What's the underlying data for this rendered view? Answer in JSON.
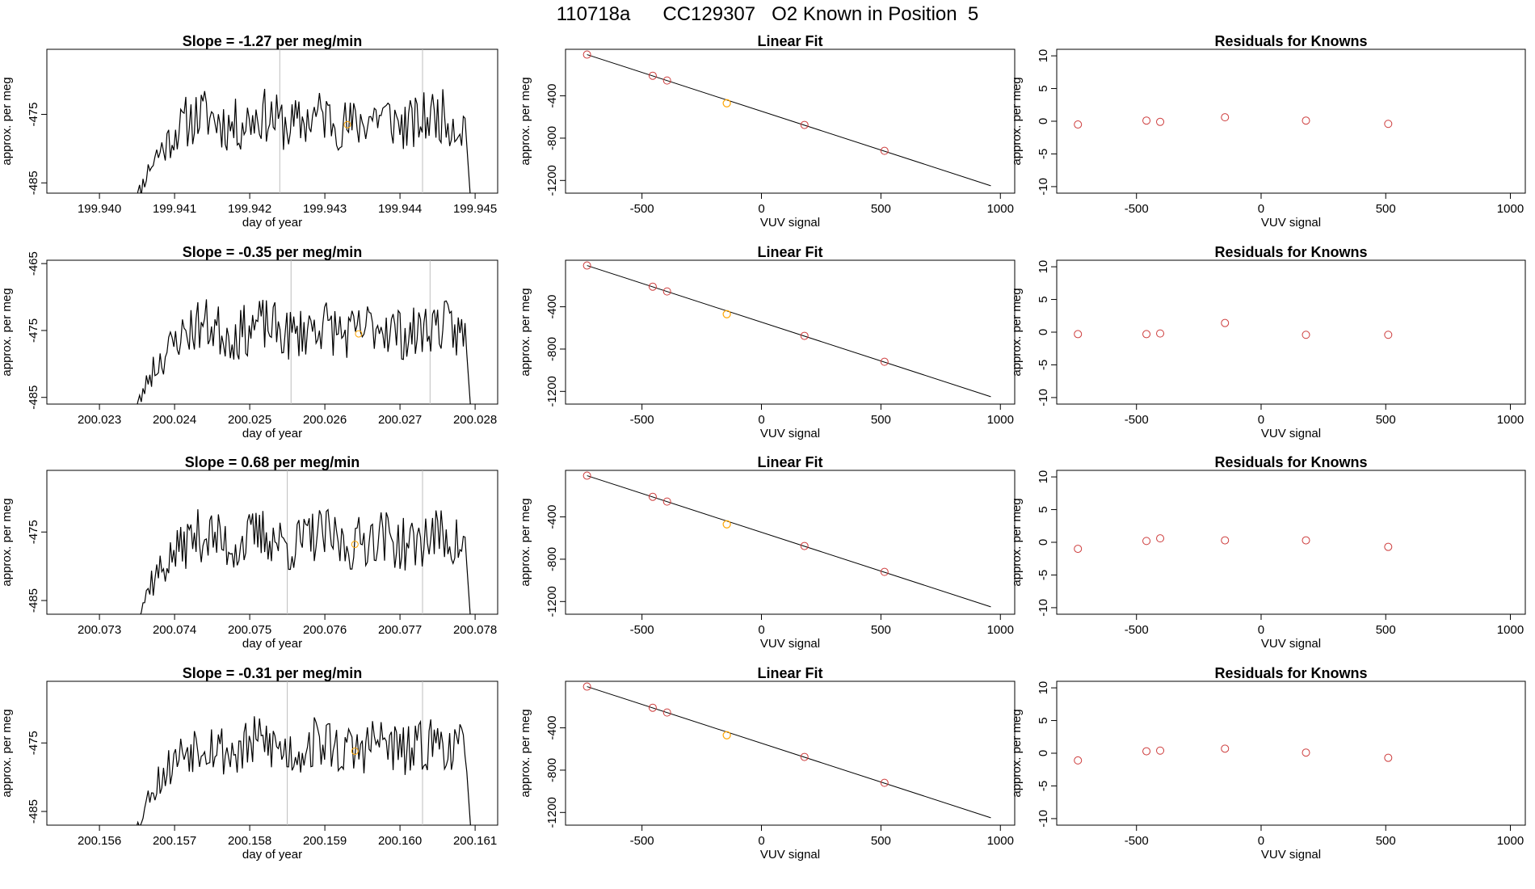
{
  "figure": {
    "title": "110718a      CC129307   O2 Known in Position  5"
  },
  "colors": {
    "trace": "#000000",
    "vline": "#bebebe",
    "known": "#cd3b3b",
    "unknown": "#ffa500"
  },
  "chart_data": [
    {
      "type": "line",
      "title": "Slope =  -1.27  per meg/min",
      "xlabel": "day of year",
      "ylabel": "approx. per meg",
      "xlim": [
        199.9393,
        199.9453
      ],
      "ylim": [
        -486.5,
        -465.5
      ],
      "xticks": [
        199.94,
        199.941,
        199.942,
        199.943,
        199.944,
        199.945
      ],
      "xtick_labels": [
        "199.940",
        "199.941",
        "199.942",
        "199.943",
        "199.944",
        "199.945"
      ],
      "yticks": [
        -485,
        -475
      ],
      "ytick_labels": [
        "-485",
        "-475"
      ],
      "vlines": [
        199.9424,
        199.9443
      ],
      "point": {
        "x": 199.9433,
        "y": -476.5
      },
      "noise_seed": 11
    },
    {
      "type": "scatter",
      "title": "Linear Fit",
      "xlabel": "VUV signal",
      "ylabel": "approx. per meg",
      "xlim": [
        -820,
        1060
      ],
      "ylim": [
        -1320,
        40
      ],
      "xticks": [
        -500,
        0,
        500,
        1000
      ],
      "xtick_labels": [
        "-500",
        "0",
        "500",
        "1000"
      ],
      "yticks": [
        -1200,
        -800,
        -400
      ],
      "ytick_labels": [
        "-1200",
        "-800",
        "-400"
      ],
      "line": [
        [
          -730,
          -10
        ],
        [
          960,
          -1250
        ]
      ],
      "knowns": [
        [
          -730,
          -10
        ],
        [
          -455,
          -210
        ],
        [
          -395,
          -255
        ],
        [
          180,
          -675
        ],
        [
          515,
          -920
        ]
      ],
      "unknown": [
        -145,
        -470
      ]
    },
    {
      "type": "scatter",
      "title": "Residuals for Knowns",
      "xlabel": "VUV signal",
      "ylabel": "approx. per meg",
      "xlim": [
        -820,
        1060
      ],
      "ylim": [
        -11,
        11
      ],
      "xticks": [
        -500,
        0,
        500,
        1000
      ],
      "xtick_labels": [
        "-500",
        "0",
        "500",
        "1000"
      ],
      "yticks": [
        -10,
        -5,
        0,
        5,
        10
      ],
      "ytick_labels": [
        "-10",
        "-5",
        "0",
        "5",
        "10"
      ],
      "knowns": [
        [
          -735,
          -0.5
        ],
        [
          -460,
          0.1
        ],
        [
          -405,
          -0.1
        ],
        [
          -145,
          0.6
        ],
        [
          180,
          0.1
        ],
        [
          510,
          -0.4
        ]
      ]
    },
    {
      "type": "line",
      "title": "Slope =  -0.35  per meg/min",
      "xlabel": "day of year",
      "ylabel": "approx. per meg",
      "xlim": [
        200.0223,
        200.0283
      ],
      "ylim": [
        -486.0,
        -464.5
      ],
      "xticks": [
        200.023,
        200.024,
        200.025,
        200.026,
        200.027,
        200.028
      ],
      "xtick_labels": [
        "200.023",
        "200.024",
        "200.025",
        "200.026",
        "200.027",
        "200.028"
      ],
      "yticks": [
        -485,
        -475,
        -465
      ],
      "ytick_labels": [
        "-485",
        "-475",
        "-465"
      ],
      "vlines": [
        200.02555,
        200.0274
      ],
      "point": {
        "x": 200.02645,
        "y": -475.5
      },
      "noise_seed": 23
    },
    {
      "type": "scatter",
      "title": "Linear Fit",
      "xlabel": "VUV signal",
      "ylabel": "approx. per meg",
      "xlim": [
        -820,
        1060
      ],
      "ylim": [
        -1320,
        40
      ],
      "xticks": [
        -500,
        0,
        500,
        1000
      ],
      "xtick_labels": [
        "-500",
        "0",
        "500",
        "1000"
      ],
      "yticks": [
        -1200,
        -800,
        -400
      ],
      "ytick_labels": [
        "-1200",
        "-800",
        "-400"
      ],
      "line": [
        [
          -730,
          -10
        ],
        [
          960,
          -1250
        ]
      ],
      "knowns": [
        [
          -730,
          -10
        ],
        [
          -455,
          -210
        ],
        [
          -395,
          -255
        ],
        [
          180,
          -675
        ],
        [
          515,
          -920
        ]
      ],
      "unknown": [
        -145,
        -470
      ]
    },
    {
      "type": "scatter",
      "title": "Residuals for Knowns",
      "xlabel": "VUV signal",
      "ylabel": "approx. per meg",
      "xlim": [
        -820,
        1060
      ],
      "ylim": [
        -11,
        11
      ],
      "xticks": [
        -500,
        0,
        500,
        1000
      ],
      "xtick_labels": [
        "-500",
        "0",
        "500",
        "1000"
      ],
      "yticks": [
        -10,
        -5,
        0,
        5,
        10
      ],
      "ytick_labels": [
        "-10",
        "-5",
        "0",
        "5",
        "10"
      ],
      "knowns": [
        [
          -735,
          -0.3
        ],
        [
          -460,
          -0.3
        ],
        [
          -405,
          -0.2
        ],
        [
          -145,
          1.4
        ],
        [
          180,
          -0.4
        ],
        [
          510,
          -0.4
        ]
      ]
    },
    {
      "type": "line",
      "title": "Slope =  0.68  per meg/min",
      "xlabel": "day of year",
      "ylabel": "approx. per meg",
      "xlim": [
        200.0723,
        200.0783
      ],
      "ylim": [
        -487.0,
        -466.0
      ],
      "xticks": [
        200.073,
        200.074,
        200.075,
        200.076,
        200.077,
        200.078
      ],
      "xtick_labels": [
        "200.073",
        "200.074",
        "200.075",
        "200.076",
        "200.077",
        "200.078"
      ],
      "yticks": [
        -485,
        -475
      ],
      "ytick_labels": [
        "-485",
        "-475"
      ],
      "vlines": [
        200.0755,
        200.0773
      ],
      "point": {
        "x": 200.0764,
        "y": -476.8
      },
      "noise_seed": 37
    },
    {
      "type": "scatter",
      "title": "Linear Fit",
      "xlabel": "VUV signal",
      "ylabel": "approx. per meg",
      "xlim": [
        -820,
        1060
      ],
      "ylim": [
        -1320,
        40
      ],
      "xticks": [
        -500,
        0,
        500,
        1000
      ],
      "xtick_labels": [
        "-500",
        "0",
        "500",
        "1000"
      ],
      "yticks": [
        -1200,
        -800,
        -400
      ],
      "ytick_labels": [
        "-1200",
        "-800",
        "-400"
      ],
      "line": [
        [
          -730,
          -10
        ],
        [
          960,
          -1250
        ]
      ],
      "knowns": [
        [
          -730,
          -10
        ],
        [
          -455,
          -210
        ],
        [
          -395,
          -255
        ],
        [
          180,
          -675
        ],
        [
          515,
          -920
        ]
      ],
      "unknown": [
        -145,
        -470
      ]
    },
    {
      "type": "scatter",
      "title": "Residuals for Knowns",
      "xlabel": "VUV signal",
      "ylabel": "approx. per meg",
      "xlim": [
        -820,
        1060
      ],
      "ylim": [
        -11,
        11
      ],
      "xticks": [
        -500,
        0,
        500,
        1000
      ],
      "xtick_labels": [
        "-500",
        "0",
        "500",
        "1000"
      ],
      "yticks": [
        -10,
        -5,
        0,
        5,
        10
      ],
      "ytick_labels": [
        "-10",
        "-5",
        "0",
        "5",
        "10"
      ],
      "knowns": [
        [
          -735,
          -1.0
        ],
        [
          -460,
          0.2
        ],
        [
          -405,
          0.6
        ],
        [
          -145,
          0.3
        ],
        [
          180,
          0.3
        ],
        [
          510,
          -0.7
        ]
      ]
    },
    {
      "type": "line",
      "title": "Slope =  -0.31  per meg/min",
      "xlabel": "day of year",
      "ylabel": "approx. per meg",
      "xlim": [
        200.1553,
        200.1613
      ],
      "ylim": [
        -487.0,
        -466.0
      ],
      "xticks": [
        200.156,
        200.157,
        200.158,
        200.159,
        200.16,
        200.161
      ],
      "xtick_labels": [
        "200.156",
        "200.157",
        "200.158",
        "200.159",
        "200.160",
        "200.161"
      ],
      "yticks": [
        -485,
        -475
      ],
      "ytick_labels": [
        "-485",
        "-475"
      ],
      "vlines": [
        200.1585,
        200.1603
      ],
      "point": {
        "x": 200.1594,
        "y": -476.2
      },
      "noise_seed": 53
    },
    {
      "type": "scatter",
      "title": "Linear Fit",
      "xlabel": "VUV signal",
      "ylabel": "approx. per meg",
      "xlim": [
        -820,
        1060
      ],
      "ylim": [
        -1320,
        40
      ],
      "xticks": [
        -500,
        0,
        500,
        1000
      ],
      "xtick_labels": [
        "-500",
        "0",
        "500",
        "1000"
      ],
      "yticks": [
        -1200,
        -800,
        -400
      ],
      "ytick_labels": [
        "-1200",
        "-800",
        "-400"
      ],
      "line": [
        [
          -730,
          -10
        ],
        [
          960,
          -1250
        ]
      ],
      "knowns": [
        [
          -730,
          -10
        ],
        [
          -455,
          -210
        ],
        [
          -395,
          -255
        ],
        [
          180,
          -675
        ],
        [
          515,
          -920
        ]
      ],
      "unknown": [
        -145,
        -470
      ]
    },
    {
      "type": "scatter",
      "title": "Residuals for Knowns",
      "xlabel": "VUV signal",
      "ylabel": "approx. per meg",
      "xlim": [
        -820,
        1060
      ],
      "ylim": [
        -11,
        11
      ],
      "xticks": [
        -500,
        0,
        500,
        1000
      ],
      "xtick_labels": [
        "-500",
        "0",
        "500",
        "1000"
      ],
      "yticks": [
        -10,
        -5,
        0,
        5,
        10
      ],
      "ytick_labels": [
        "-10",
        "-5",
        "0",
        "5",
        "10"
      ],
      "knowns": [
        [
          -735,
          -1.1
        ],
        [
          -460,
          0.3
        ],
        [
          -405,
          0.4
        ],
        [
          -145,
          0.7
        ],
        [
          180,
          0.1
        ],
        [
          510,
          -0.7
        ]
      ]
    }
  ]
}
